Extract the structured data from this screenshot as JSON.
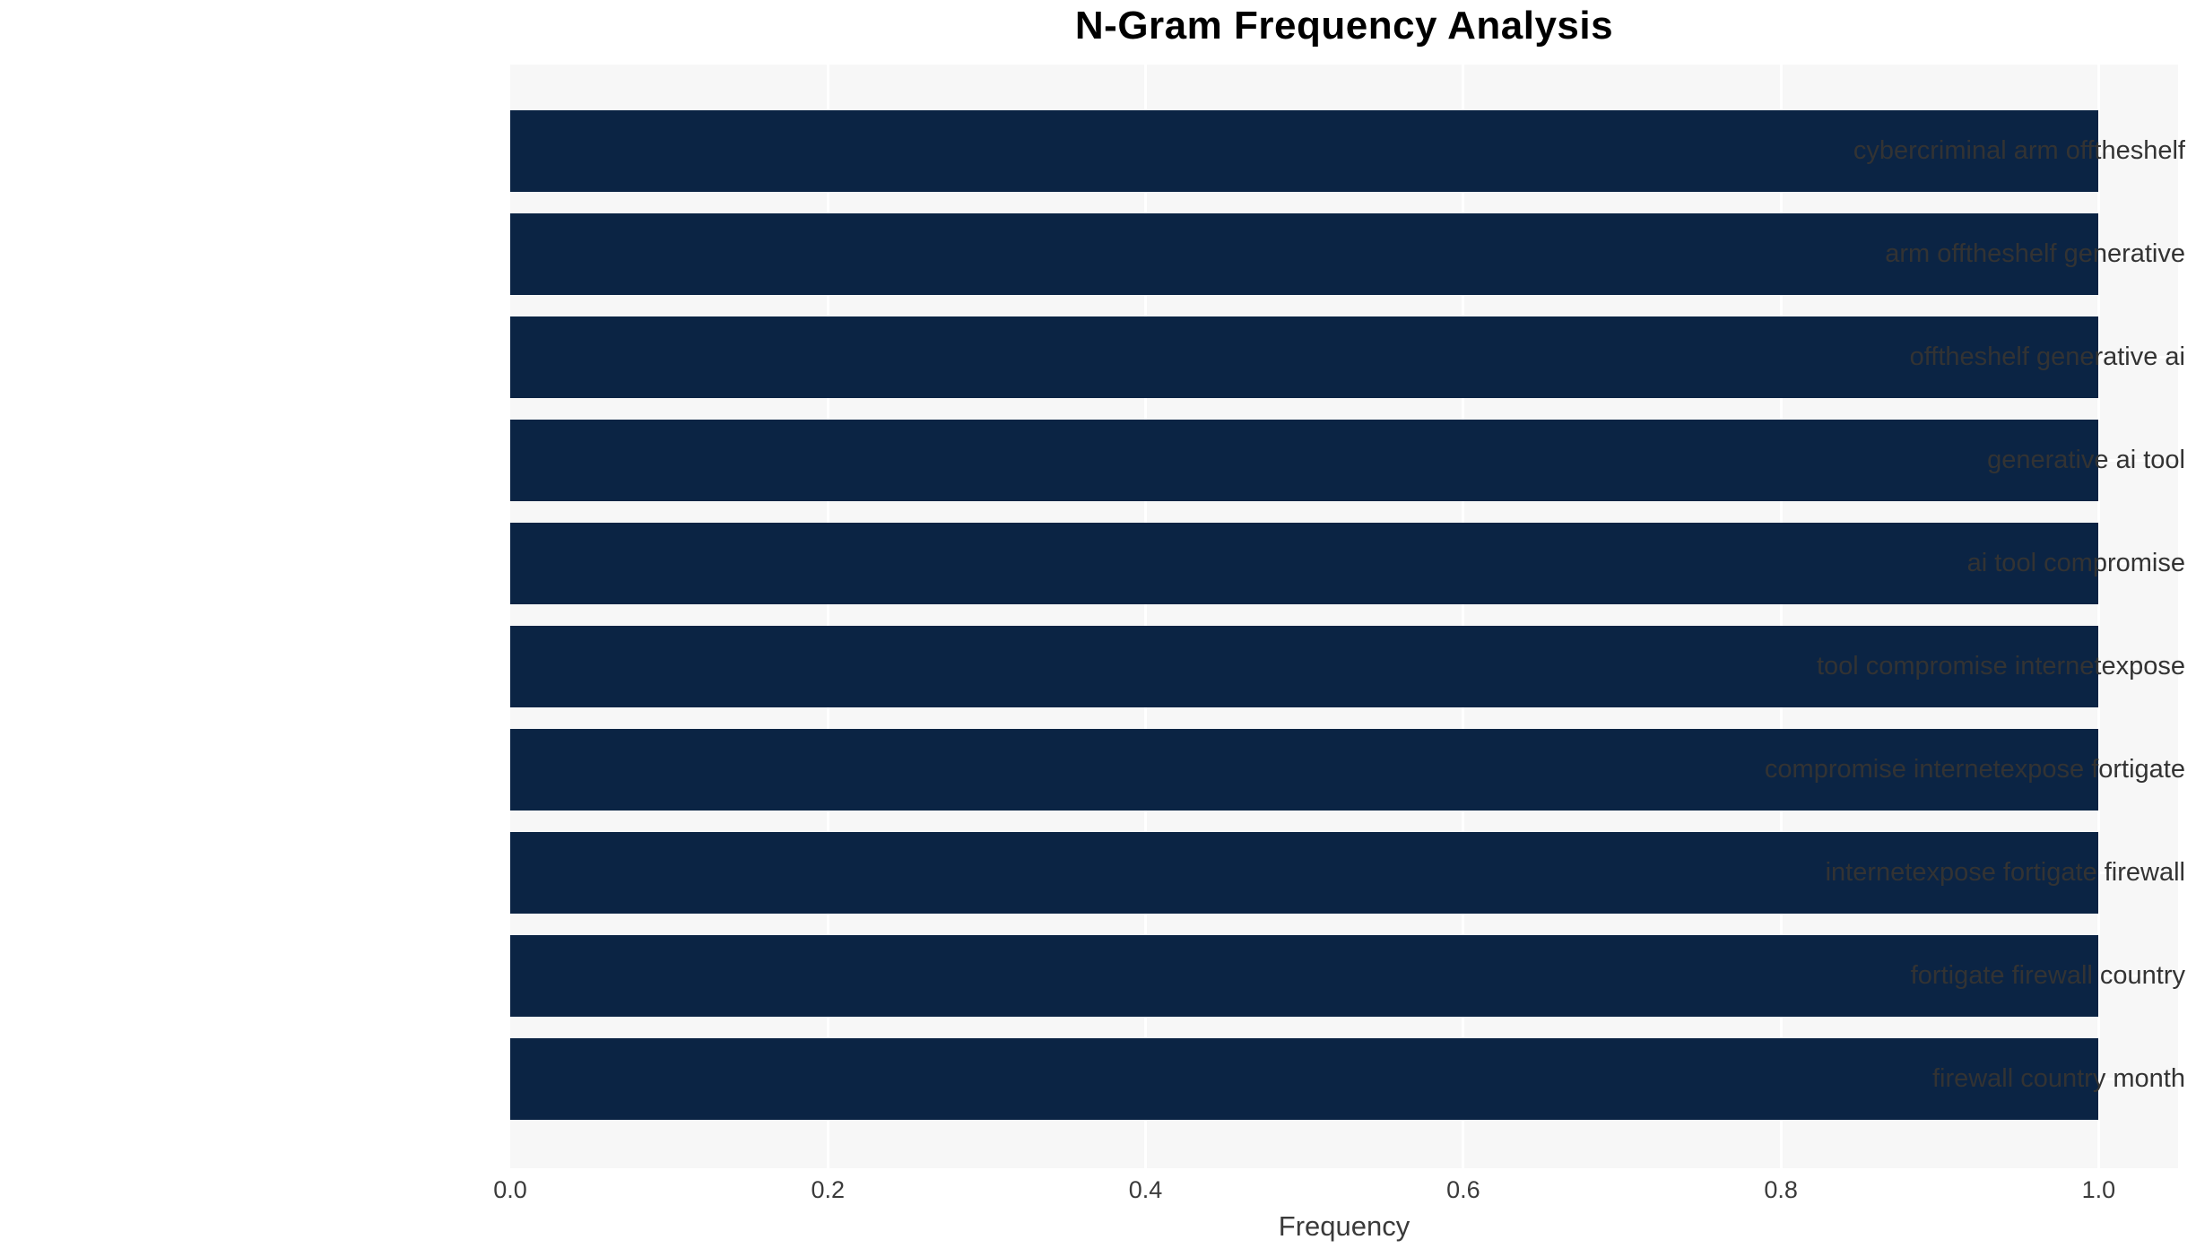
{
  "chart_data": {
    "type": "bar",
    "orientation": "horizontal",
    "title": "N-Gram Frequency Analysis",
    "xlabel": "Frequency",
    "ylabel": "",
    "categories": [
      "cybercriminal arm offtheshelf",
      "arm offtheshelf generative",
      "offtheshelf generative ai",
      "generative ai tool",
      "ai tool compromise",
      "tool compromise internetexpose",
      "compromise internetexpose fortigate",
      "internetexpose fortigate firewall",
      "fortigate firewall country",
      "firewall country month"
    ],
    "values": [
      1.0,
      1.0,
      1.0,
      1.0,
      1.0,
      1.0,
      1.0,
      1.0,
      1.0,
      1.0
    ],
    "x_ticks": [
      "0.0",
      "0.2",
      "0.4",
      "0.6",
      "0.8",
      "1.0"
    ],
    "xlim": [
      0,
      1.05
    ],
    "grid": "white gridlines at x ticks and category centers, drawn behind bars",
    "legend": "none",
    "colors": {
      "bar": "#0b2444",
      "plot_background": "#f7f7f7",
      "gridline": "#ffffff",
      "tick_text": "#3a3a3a",
      "label_text": "#333333",
      "title_text": "#000000"
    }
  }
}
